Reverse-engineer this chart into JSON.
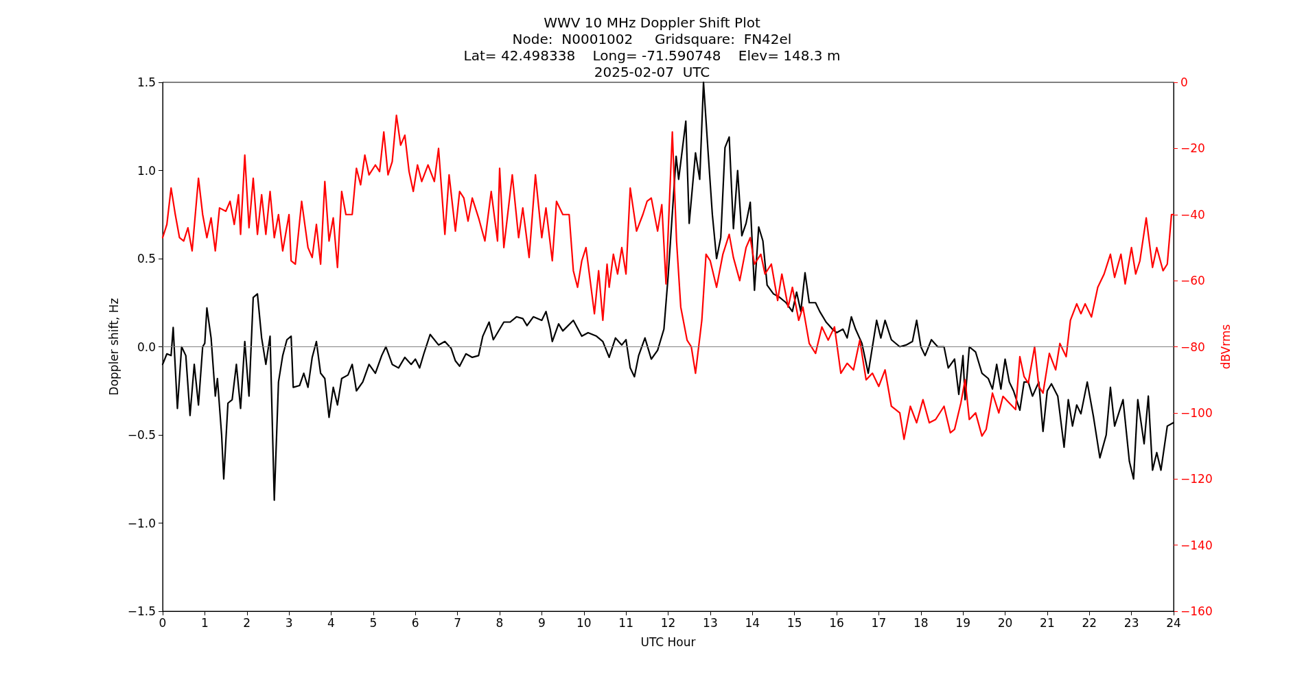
{
  "chart_data": {
    "type": "line",
    "title": "WWV 10 MHz Doppler Shift Plot",
    "subtitle": "Node:  N0001002     Gridsquare:  FN42el\nLat= 42.498338    Long= -71.590748    Elev= 148.3 m\n2025-02-07  UTC",
    "xlabel": "UTC Hour",
    "ylabel": "Doppler shift, Hz",
    "y2label": "dBVrms",
    "xlim": [
      0,
      24
    ],
    "xticks": [
      0,
      1,
      2,
      3,
      4,
      5,
      6,
      7,
      8,
      9,
      10,
      11,
      12,
      13,
      14,
      15,
      16,
      17,
      18,
      19,
      20,
      21,
      22,
      23,
      24
    ],
    "ylim": [
      -1.5,
      1.5
    ],
    "yticks": [
      {
        "value": -1.5,
        "label": "−1.5"
      },
      {
        "value": -1,
        "label": "−1.0"
      },
      {
        "value": -0.5,
        "label": "−0.5"
      },
      {
        "value": 0,
        "label": "0.0"
      },
      {
        "value": 0.5,
        "label": "0.5"
      },
      {
        "value": 1,
        "label": "1.0"
      },
      {
        "value": 1.5,
        "label": "1.5"
      }
    ],
    "y2lim": [
      -160,
      0
    ],
    "y2ticks": [
      {
        "value": -160,
        "label": "−160"
      },
      {
        "value": -140,
        "label": "−140"
      },
      {
        "value": -120,
        "label": "−120"
      },
      {
        "value": -100,
        "label": "−100"
      },
      {
        "value": -80,
        "label": "−80"
      },
      {
        "value": -60,
        "label": "−60"
      },
      {
        "value": -40,
        "label": "−40"
      },
      {
        "value": -20,
        "label": "−20"
      },
      0
    ],
    "grid": false,
    "marker": "none",
    "line_style": "solid",
    "ref_lines": [
      {
        "axis": "y",
        "value": 0,
        "color": "#808080"
      }
    ],
    "series": [
      {
        "color": "#000000",
        "x": [
          0,
          0.1,
          0.2,
          0.25,
          0.35,
          0.45,
          0.55,
          0.65,
          0.75,
          0.85,
          0.95,
          1,
          1.05,
          1.15,
          1.25,
          1.3,
          1.4,
          1.45,
          1.55,
          1.65,
          1.75,
          1.85,
          1.95,
          2.05,
          2.15,
          2.25,
          2.35,
          2.45,
          2.55,
          2.65,
          2.75,
          2.85,
          2.95,
          3.05,
          3.1,
          3.25,
          3.35,
          3.45,
          3.55,
          3.65,
          3.75,
          3.85,
          3.95,
          4.05,
          4.15,
          4.25,
          4.4,
          4.5,
          4.6,
          4.75,
          4.9,
          5.05,
          5.2,
          5.3,
          5.45,
          5.6,
          5.75,
          5.9,
          6,
          6.1,
          6.2,
          6.35,
          6.55,
          6.7,
          6.85,
          6.95,
          7.05,
          7.2,
          7.35,
          7.5,
          7.6,
          7.75,
          7.85,
          7.95,
          8.1,
          8.25,
          8.4,
          8.55,
          8.65,
          8.8,
          9,
          9.1,
          9.2,
          9.25,
          9.4,
          9.5,
          9.75,
          9.95,
          10.1,
          10.3,
          10.45,
          10.6,
          10.75,
          10.9,
          11,
          11.1,
          11.2,
          11.3,
          11.45,
          11.6,
          11.75,
          11.9,
          12,
          12.19,
          12.25,
          12.42,
          12.5,
          12.65,
          12.75,
          12.84,
          12.95,
          13.05,
          13.15,
          13.25,
          13.35,
          13.45,
          13.55,
          13.65,
          13.75,
          13.85,
          13.95,
          14.05,
          14.15,
          14.25,
          14.35,
          14.5,
          14.65,
          14.8,
          14.95,
          15.05,
          15.15,
          15.25,
          15.35,
          15.5,
          15.6,
          15.75,
          15.9,
          16,
          16.15,
          16.25,
          16.35,
          16.45,
          16.6,
          16.75,
          16.85,
          16.95,
          17.05,
          17.15,
          17.3,
          17.5,
          17.65,
          17.8,
          17.9,
          18,
          18.1,
          18.25,
          18.4,
          18.55,
          18.65,
          18.8,
          18.9,
          19,
          19.05,
          19.15,
          19.3,
          19.45,
          19.6,
          19.7,
          19.8,
          19.9,
          20,
          20.1,
          20.2,
          20.35,
          20.45,
          20.55,
          20.65,
          20.8,
          20.9,
          21,
          21.1,
          21.25,
          21.4,
          21.5,
          21.6,
          21.7,
          21.8,
          21.95,
          22.1,
          22.25,
          22.4,
          22.5,
          22.6,
          22.8,
          22.95,
          23.05,
          23.15,
          23.3,
          23.4,
          23.5,
          23.6,
          23.7,
          23.85,
          24
        ],
        "values": [
          -0.1,
          -0.04,
          -0.05,
          0.11,
          -0.35,
          0,
          -0.05,
          -0.39,
          -0.1,
          -0.33,
          0,
          0.02,
          0.22,
          0.05,
          -0.28,
          -0.18,
          -0.5,
          -0.75,
          -0.32,
          -0.3,
          -0.1,
          -0.35,
          0.03,
          -0.28,
          0.28,
          0.3,
          0.05,
          -0.1,
          0.06,
          -0.87,
          -0.2,
          -0.05,
          0.04,
          0.06,
          -0.23,
          -0.22,
          -0.15,
          -0.23,
          -0.06,
          0.03,
          -0.15,
          -0.18,
          -0.4,
          -0.23,
          -0.33,
          -0.18,
          -0.16,
          -0.1,
          -0.25,
          -0.2,
          -0.1,
          -0.15,
          -0.05,
          0,
          -0.1,
          -0.12,
          -0.06,
          -0.1,
          -0.07,
          -0.12,
          -0.04,
          0.07,
          0.01,
          0.03,
          -0.01,
          -0.08,
          -0.11,
          -0.04,
          -0.06,
          -0.05,
          0.06,
          0.14,
          0.04,
          0.08,
          0.14,
          0.14,
          0.17,
          0.16,
          0.12,
          0.17,
          0.15,
          0.2,
          0.1,
          0.03,
          0.13,
          0.09,
          0.15,
          0.06,
          0.08,
          0.06,
          0.03,
          -0.06,
          0.05,
          0.01,
          0.04,
          -0.12,
          -0.17,
          -0.05,
          0.05,
          -0.07,
          -0.02,
          0.1,
          0.4,
          1.08,
          0.95,
          1.28,
          0.7,
          1.1,
          0.95,
          1.5,
          1.1,
          0.75,
          0.5,
          0.62,
          1.13,
          1.19,
          0.67,
          1,
          0.63,
          0.7,
          0.82,
          0.32,
          0.68,
          0.6,
          0.35,
          0.3,
          0.28,
          0.25,
          0.2,
          0.31,
          0.2,
          0.42,
          0.25,
          0.25,
          0.2,
          0.14,
          0.1,
          0.08,
          0.1,
          0.05,
          0.17,
          0.1,
          0.02,
          -0.15,
          0,
          0.15,
          0.05,
          0.15,
          0.04,
          0,
          0.01,
          0.03,
          0.15,
          0,
          -0.05,
          0.04,
          0,
          0,
          -0.12,
          -0.07,
          -0.27,
          -0.05,
          -0.3,
          0,
          -0.03,
          -0.15,
          -0.18,
          -0.24,
          -0.1,
          -0.24,
          -0.07,
          -0.2,
          -0.25,
          -0.36,
          -0.2,
          -0.2,
          -0.28,
          -0.2,
          -0.48,
          -0.25,
          -0.21,
          -0.28,
          -0.57,
          -0.3,
          -0.45,
          -0.33,
          -0.38,
          -0.2,
          -0.4,
          -0.63,
          -0.5,
          -0.23,
          -0.45,
          -0.3,
          -0.65,
          -0.75,
          -0.3,
          -0.55,
          -0.28,
          -0.7,
          -0.6,
          -0.7,
          -0.45,
          -0.43
        ]
      },
      {
        "color": "#ff0000",
        "axis": "y2",
        "x": [
          0,
          0.1,
          0.2,
          0.3,
          0.4,
          0.5,
          0.6,
          0.7,
          0.85,
          0.95,
          1.05,
          1.15,
          1.25,
          1.35,
          1.5,
          1.6,
          1.7,
          1.8,
          1.85,
          1.95,
          2.05,
          2.15,
          2.25,
          2.35,
          2.45,
          2.55,
          2.65,
          2.75,
          2.85,
          3,
          3.05,
          3.15,
          3.3,
          3.45,
          3.55,
          3.65,
          3.75,
          3.85,
          3.95,
          4.05,
          4.15,
          4.25,
          4.35,
          4.5,
          4.6,
          4.7,
          4.8,
          4.9,
          5.05,
          5.15,
          5.25,
          5.35,
          5.45,
          5.55,
          5.65,
          5.75,
          5.85,
          5.95,
          6.05,
          6.15,
          6.3,
          6.45,
          6.55,
          6.7,
          6.8,
          6.95,
          7.05,
          7.15,
          7.25,
          7.35,
          7.5,
          7.65,
          7.8,
          7.95,
          8,
          8.1,
          8.3,
          8.45,
          8.55,
          8.7,
          8.85,
          9,
          9.1,
          9.25,
          9.35,
          9.5,
          9.65,
          9.75,
          9.85,
          9.95,
          10.05,
          10.15,
          10.25,
          10.35,
          10.45,
          10.55,
          10.6,
          10.7,
          10.8,
          10.9,
          11,
          11.05,
          11.1,
          11.25,
          11.4,
          11.5,
          11.6,
          11.75,
          11.85,
          11.95,
          12.1,
          12.2,
          12.3,
          12.45,
          12.55,
          12.65,
          12.8,
          12.9,
          13,
          13.15,
          13.3,
          13.45,
          13.55,
          13.7,
          13.85,
          13.95,
          14.05,
          14.2,
          14.3,
          14.45,
          14.6,
          14.7,
          14.85,
          14.95,
          15.1,
          15.2,
          15.35,
          15.5,
          15.65,
          15.8,
          15.95,
          16.1,
          16.25,
          16.4,
          16.55,
          16.7,
          16.85,
          17,
          17.15,
          17.3,
          17.5,
          17.6,
          17.75,
          17.9,
          18.05,
          18.2,
          18.35,
          18.55,
          18.7,
          18.8,
          18.95,
          19.05,
          19.15,
          19.3,
          19.45,
          19.55,
          19.7,
          19.85,
          19.95,
          20.1,
          20.25,
          20.35,
          20.45,
          20.55,
          20.7,
          20.8,
          20.9,
          21.05,
          21.2,
          21.3,
          21.45,
          21.55,
          21.7,
          21.8,
          21.9,
          22.05,
          22.2,
          22.35,
          22.5,
          22.6,
          22.75,
          22.85,
          23,
          23.1,
          23.2,
          23.35,
          23.5,
          23.6,
          23.75,
          23.85,
          23.95,
          24
        ],
        "values": [
          -47,
          -43,
          -32,
          -40,
          -47,
          -48,
          -44,
          -51,
          -29,
          -40,
          -47,
          -41,
          -51,
          -38,
          -39,
          -36,
          -43,
          -34,
          -46,
          -22,
          -44,
          -29,
          -46,
          -34,
          -46,
          -33,
          -47,
          -40,
          -51,
          -40,
          -54,
          -55,
          -36,
          -50,
          -53,
          -43,
          -55,
          -30,
          -48,
          -41,
          -56,
          -33,
          -40,
          -40,
          -26,
          -31,
          -22,
          -28,
          -25,
          -27,
          -15,
          -28,
          -24,
          -10,
          -19,
          -16,
          -27,
          -33,
          -25,
          -30,
          -25,
          -30,
          -20,
          -46,
          -28,
          -45,
          -33,
          -35,
          -42,
          -35,
          -41,
          -48,
          -33,
          -48,
          -26,
          -50,
          -28,
          -47,
          -38,
          -53,
          -28,
          -47,
          -38,
          -54,
          -36,
          -40,
          -40,
          -57,
          -62,
          -54,
          -50,
          -60,
          -70,
          -57,
          -72,
          -55,
          -62,
          -52,
          -58,
          -50,
          -58,
          -45,
          -32,
          -45,
          -40,
          -36,
          -35,
          -45,
          -37,
          -61,
          -15,
          -48,
          -68,
          -78,
          -80,
          -88,
          -72,
          -52,
          -54,
          -62,
          -52,
          -46,
          -53,
          -60,
          -50,
          -47,
          -55,
          -52,
          -58,
          -55,
          -66,
          -58,
          -68,
          -62,
          -72,
          -68,
          -79,
          -82,
          -74,
          -78,
          -74,
          -88,
          -85,
          -87,
          -78,
          -90,
          -88,
          -92,
          -87,
          -98,
          -100,
          -108,
          -98,
          -103,
          -96,
          -103,
          -102,
          -98,
          -106,
          -105,
          -97,
          -90,
          -102,
          -100,
          -107,
          -105,
          -94,
          -100,
          -95,
          -97,
          -99,
          -83,
          -89,
          -91,
          -80,
          -92,
          -94,
          -82,
          -87,
          -79,
          -83,
          -72,
          -67,
          -70,
          -67,
          -71,
          -62,
          -58,
          -52,
          -59,
          -52,
          -61,
          -50,
          -58,
          -54,
          -41,
          -56,
          -50,
          -57,
          -55,
          -40,
          -40
        ]
      }
    ]
  }
}
